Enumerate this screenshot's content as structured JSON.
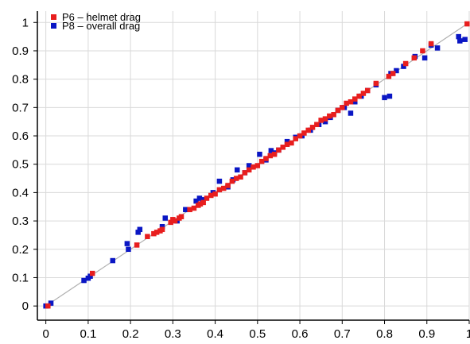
{
  "chart_data": {
    "type": "scatter",
    "title": "",
    "xlabel": "",
    "ylabel": "",
    "xlim": [
      -0.02,
      1.0
    ],
    "ylim": [
      -0.05,
      1.04
    ],
    "x_ticks": [
      "0",
      "0.1",
      "0.2",
      "0.3",
      "0.4",
      "0.5",
      "0.6",
      "0.7",
      "0.8",
      "0.9",
      "1"
    ],
    "y_ticks": [
      "0",
      "0.1",
      "0.2",
      "0.3",
      "0.4",
      "0.5",
      "0.6",
      "0.7",
      "0.8",
      "0.9",
      "1"
    ],
    "grid": true,
    "legend_position": "top-left",
    "reference_line": {
      "x": [
        0,
        1
      ],
      "y": [
        0,
        1
      ],
      "color": "#b0b0b0"
    },
    "series": [
      {
        "name": "P8 – overall drag",
        "color": "#0a16c4",
        "x": [
          0,
          0.012,
          0.09,
          0.1,
          0.105,
          0.158,
          0.192,
          0.195,
          0.218,
          0.222,
          0.275,
          0.282,
          0.31,
          0.33,
          0.355,
          0.363,
          0.37,
          0.395,
          0.41,
          0.43,
          0.442,
          0.452,
          0.47,
          0.48,
          0.505,
          0.52,
          0.532,
          0.54,
          0.55,
          0.57,
          0.59,
          0.605,
          0.625,
          0.645,
          0.66,
          0.672,
          0.69,
          0.705,
          0.72,
          0.73,
          0.745,
          0.76,
          0.78,
          0.8,
          0.812,
          0.815,
          0.828,
          0.845,
          0.872,
          0.895,
          0.91,
          0.925,
          0.975,
          0.978,
          0.99
        ],
        "y": [
          0,
          0.01,
          0.09,
          0.098,
          0.105,
          0.16,
          0.22,
          0.2,
          0.26,
          0.27,
          0.28,
          0.31,
          0.3,
          0.34,
          0.37,
          0.38,
          0.375,
          0.4,
          0.44,
          0.42,
          0.445,
          0.48,
          0.47,
          0.495,
          0.535,
          0.515,
          0.548,
          0.54,
          0.55,
          0.58,
          0.595,
          0.6,
          0.62,
          0.64,
          0.65,
          0.665,
          0.69,
          0.7,
          0.68,
          0.72,
          0.74,
          0.76,
          0.78,
          0.735,
          0.74,
          0.82,
          0.83,
          0.845,
          0.88,
          0.875,
          0.92,
          0.91,
          0.95,
          0.935,
          0.94
        ]
      },
      {
        "name": "P6 – helmet drag",
        "color": "#e81e1e",
        "x": [
          0.005,
          0.11,
          0.215,
          0.24,
          0.255,
          0.262,
          0.27,
          0.275,
          0.295,
          0.3,
          0.305,
          0.315,
          0.32,
          0.34,
          0.35,
          0.36,
          0.365,
          0.372,
          0.38,
          0.39,
          0.4,
          0.41,
          0.42,
          0.43,
          0.44,
          0.45,
          0.46,
          0.47,
          0.48,
          0.49,
          0.5,
          0.51,
          0.52,
          0.53,
          0.54,
          0.55,
          0.56,
          0.57,
          0.58,
          0.59,
          0.6,
          0.61,
          0.62,
          0.63,
          0.64,
          0.65,
          0.66,
          0.67,
          0.68,
          0.69,
          0.7,
          0.71,
          0.72,
          0.73,
          0.74,
          0.75,
          0.76,
          0.78,
          0.81,
          0.82,
          0.85,
          0.87,
          0.89,
          0.91,
          0.995
        ],
        "y": [
          0,
          0.115,
          0.215,
          0.245,
          0.255,
          0.26,
          0.265,
          0.27,
          0.295,
          0.305,
          0.3,
          0.31,
          0.315,
          0.34,
          0.345,
          0.355,
          0.36,
          0.365,
          0.38,
          0.39,
          0.395,
          0.41,
          0.415,
          0.425,
          0.44,
          0.45,
          0.455,
          0.47,
          0.48,
          0.49,
          0.495,
          0.51,
          0.52,
          0.53,
          0.535,
          0.55,
          0.56,
          0.57,
          0.575,
          0.59,
          0.6,
          0.61,
          0.62,
          0.63,
          0.64,
          0.655,
          0.66,
          0.67,
          0.675,
          0.69,
          0.7,
          0.715,
          0.72,
          0.73,
          0.74,
          0.75,
          0.76,
          0.785,
          0.81,
          0.82,
          0.855,
          0.875,
          0.9,
          0.925,
          0.995
        ]
      }
    ]
  }
}
